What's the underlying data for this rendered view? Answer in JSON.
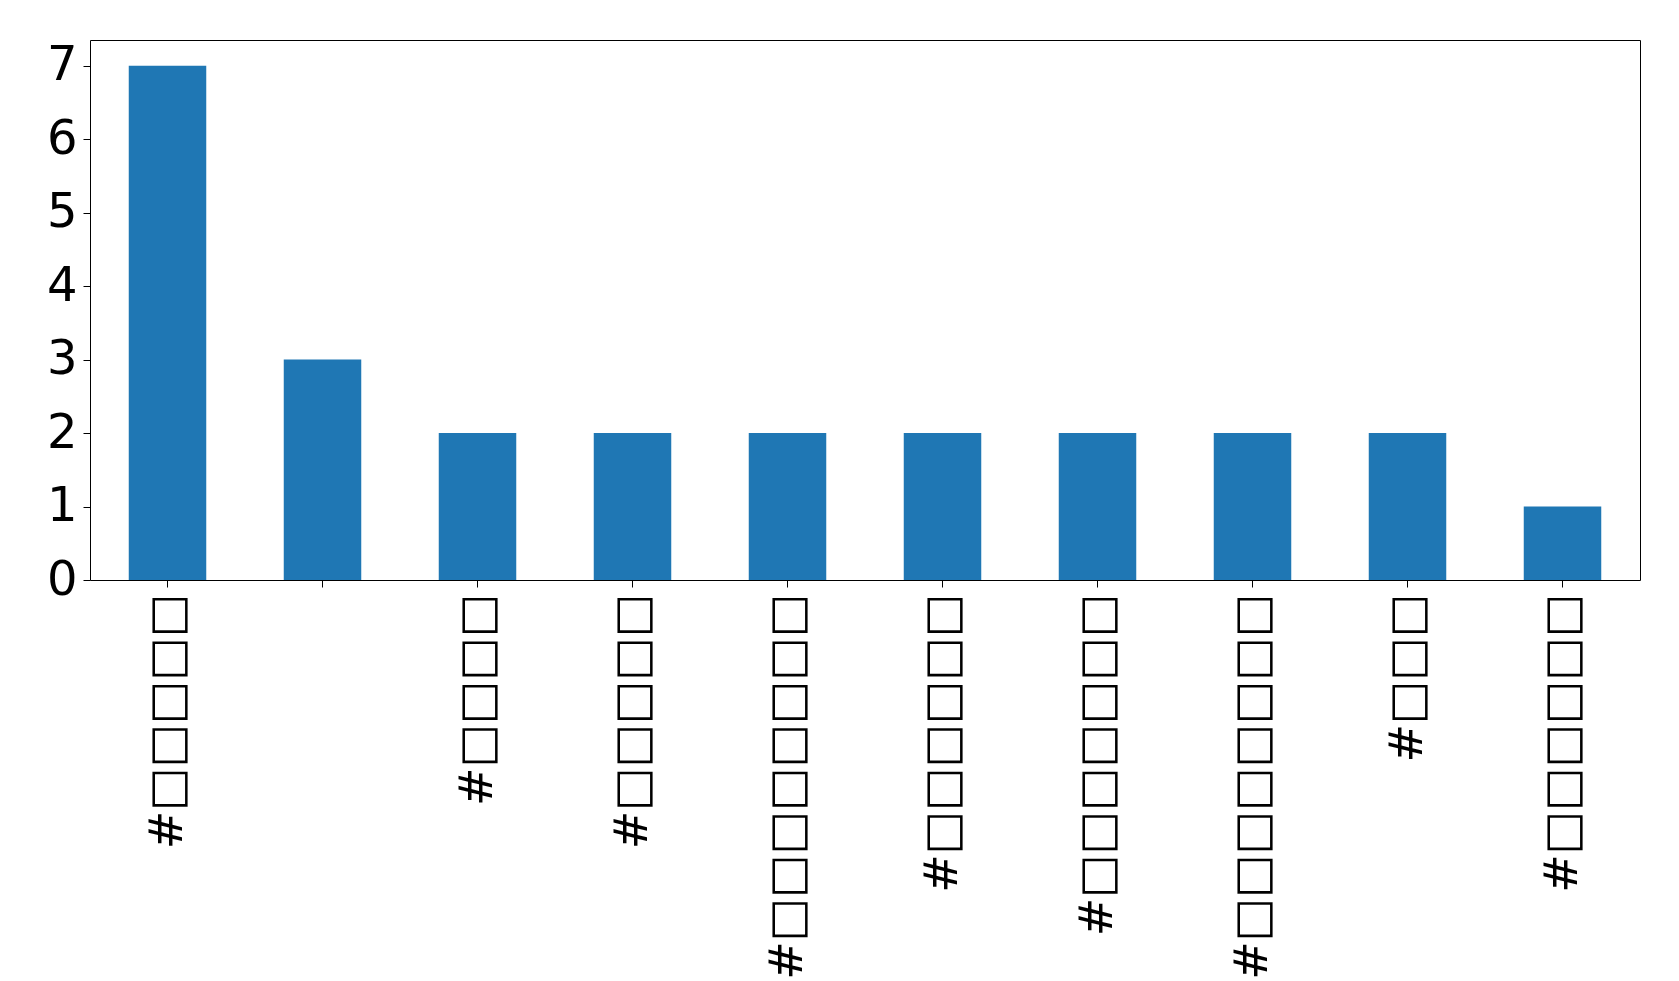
{
  "chart_data": {
    "type": "bar",
    "categories": [
      "#□□□□□",
      null,
      "#□□□□",
      "#□□□□□",
      "#□□□□□□□□",
      "#□□□□□□",
      "#□□□□□□□",
      "#□□□□□□□□",
      "#□□□",
      "#□□□□□□"
    ],
    "values": [
      7,
      3,
      2,
      2,
      2,
      2,
      2,
      2,
      2,
      1
    ],
    "color": "#1f77b4",
    "ylim": [
      0,
      7.35
    ],
    "yticks": [
      0,
      1,
      2,
      3,
      4,
      5,
      6,
      7
    ],
    "grid": false
  }
}
